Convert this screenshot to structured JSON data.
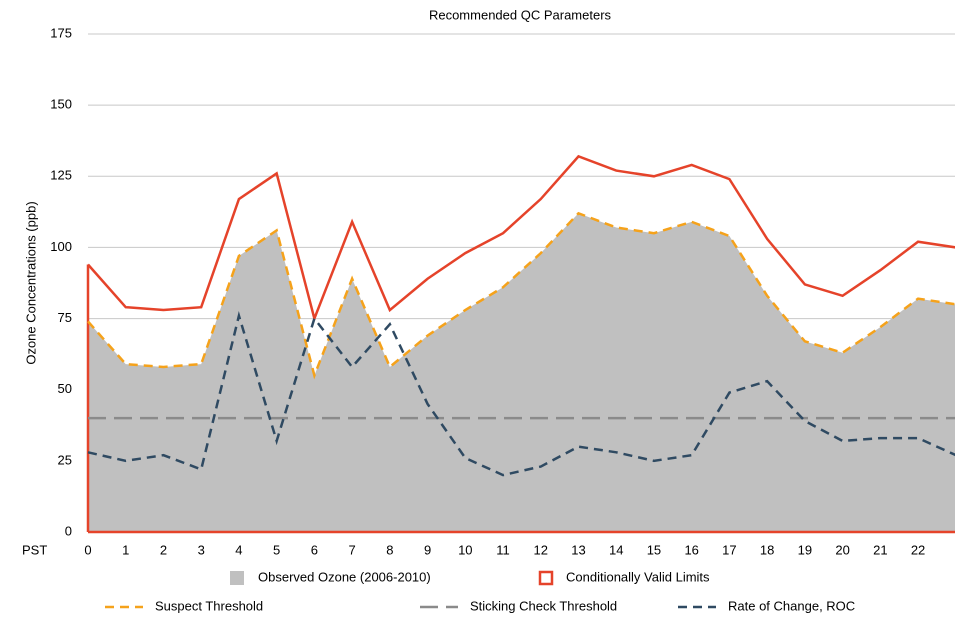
{
  "chart_data": {
    "type": "line",
    "title": "Recommended QC Parameters",
    "ylabel": "Ozone Concentrations (ppb)",
    "xlabel": "PST",
    "categories": [
      "0",
      "1",
      "2",
      "3",
      "4",
      "5",
      "6",
      "7",
      "8",
      "9",
      "10",
      "11",
      "12",
      "13",
      "14",
      "15",
      "16",
      "17",
      "18",
      "19",
      "20",
      "21",
      "22",
      null
    ],
    "ylim": [
      0,
      175
    ],
    "yticks": [
      0,
      25,
      50,
      75,
      100,
      125,
      150,
      175
    ],
    "grid": true,
    "series": [
      {
        "name": "Observed Ozone (2006-2010)",
        "kind": "area",
        "color": "#c0c0c0",
        "values": [
          74,
          59,
          58,
          59,
          97,
          106,
          55,
          89,
          58,
          69,
          78,
          86,
          98,
          112,
          107,
          105,
          109,
          104,
          83,
          67,
          63,
          72,
          82,
          80
        ]
      },
      {
        "name": "Conditionally Valid Limits",
        "kind": "line",
        "color": "#e5432a",
        "values": [
          94,
          79,
          78,
          79,
          117,
          126,
          75,
          109,
          78,
          89,
          98,
          105,
          117,
          132,
          127,
          125,
          129,
          124,
          103,
          87,
          83,
          92,
          102,
          100
        ]
      },
      {
        "name": "Suspect Threshold",
        "kind": "dashed",
        "color": "#f5a21b",
        "values": [
          74,
          59,
          58,
          59,
          97,
          106,
          55,
          89,
          58,
          69,
          78,
          86,
          98,
          112,
          107,
          105,
          109,
          104,
          83,
          67,
          63,
          72,
          82,
          80
        ]
      },
      {
        "name": "Sticking Check Threshold",
        "kind": "longdash",
        "color": "#8a8a8a",
        "values": [
          40,
          40,
          40,
          40,
          40,
          40,
          40,
          40,
          40,
          40,
          40,
          40,
          40,
          40,
          40,
          40,
          40,
          40,
          40,
          40,
          40,
          40,
          40,
          40
        ]
      },
      {
        "name": "Rate of Change, ROC",
        "kind": "dashed",
        "color": "#2f4a62",
        "values": [
          28,
          25,
          27,
          22,
          76,
          32,
          75,
          58,
          73,
          45,
          26,
          20,
          23,
          30,
          28,
          25,
          27,
          49,
          53,
          39,
          32,
          33,
          33,
          27
        ]
      }
    ]
  }
}
